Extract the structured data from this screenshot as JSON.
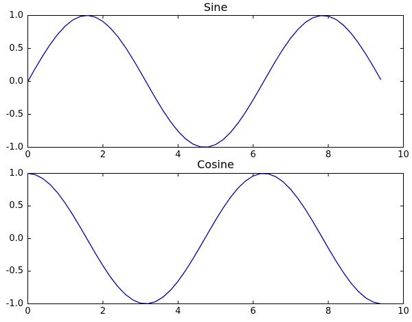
{
  "figure": {
    "background": "#ffffff"
  },
  "chart_data": [
    {
      "type": "line",
      "title": "Sine",
      "xlabel": "",
      "ylabel": "",
      "xlim": [
        0,
        10
      ],
      "ylim": [
        -1,
        1
      ],
      "xticks": [
        0,
        2,
        4,
        6,
        8,
        10
      ],
      "xtick_labels": [
        "0",
        "2",
        "4",
        "6",
        "8",
        "10"
      ],
      "yticks": [
        1.0,
        0.5,
        0.0,
        -0.5,
        -1.0
      ],
      "ytick_labels": [
        "1.0",
        "0.5",
        "0.0",
        "-0.5",
        "-1.0"
      ],
      "grid": false,
      "legend": "none",
      "line_color": "#0000a0",
      "spine_color": "#000000",
      "series": [
        {
          "name": "sine",
          "x": [
            0,
            0.2,
            0.4,
            0.6,
            0.8,
            1.0,
            1.2,
            1.4,
            1.6,
            1.8,
            2.0,
            2.2,
            2.4,
            2.6,
            2.8,
            3.0,
            3.2,
            3.4,
            3.6,
            3.8,
            4.0,
            4.2,
            4.4,
            4.6,
            4.8,
            5.0,
            5.2,
            5.4,
            5.6,
            5.8,
            6.0,
            6.2,
            6.4,
            6.6,
            6.8,
            7.0,
            7.2,
            7.4,
            7.6,
            7.8,
            8.0,
            8.2,
            8.4,
            8.6,
            8.8,
            9.0,
            9.2,
            9.4
          ],
          "y": [
            0.0,
            0.199,
            0.389,
            0.565,
            0.717,
            0.841,
            0.932,
            0.985,
            1.0,
            0.974,
            0.909,
            0.808,
            0.676,
            0.516,
            0.335,
            0.141,
            -0.058,
            -0.256,
            -0.443,
            -0.612,
            -0.757,
            -0.872,
            -0.952,
            -0.994,
            -0.996,
            -0.959,
            -0.884,
            -0.773,
            -0.631,
            -0.465,
            -0.279,
            -0.083,
            0.116,
            0.312,
            0.494,
            0.657,
            0.794,
            0.899,
            0.968,
            0.998,
            0.989,
            0.941,
            0.855,
            0.734,
            0.585,
            0.412,
            0.223,
            0.025
          ]
        }
      ]
    },
    {
      "type": "line",
      "title": "Cosine",
      "xlabel": "",
      "ylabel": "",
      "xlim": [
        0,
        10
      ],
      "ylim": [
        -1,
        1
      ],
      "xticks": [
        0,
        2,
        4,
        6,
        8,
        10
      ],
      "xtick_labels": [
        "0",
        "2",
        "4",
        "6",
        "8",
        "10"
      ],
      "yticks": [
        1.0,
        0.5,
        0.0,
        -0.5,
        -1.0
      ],
      "ytick_labels": [
        "1.0",
        "0.5",
        "0.0",
        "-0.5",
        "-1.0"
      ],
      "grid": false,
      "legend": "none",
      "line_color": "#0000a0",
      "spine_color": "#000000",
      "series": [
        {
          "name": "cosine",
          "x": [
            0,
            0.2,
            0.4,
            0.6,
            0.8,
            1.0,
            1.2,
            1.4,
            1.6,
            1.8,
            2.0,
            2.2,
            2.4,
            2.6,
            2.8,
            3.0,
            3.2,
            3.4,
            3.6,
            3.8,
            4.0,
            4.2,
            4.4,
            4.6,
            4.8,
            5.0,
            5.2,
            5.4,
            5.6,
            5.8,
            6.0,
            6.2,
            6.4,
            6.6,
            6.8,
            7.0,
            7.2,
            7.4,
            7.6,
            7.8,
            8.0,
            8.2,
            8.4,
            8.6,
            8.8,
            9.0,
            9.2,
            9.4
          ],
          "y": [
            1.0,
            0.98,
            0.921,
            0.825,
            0.697,
            0.54,
            0.362,
            0.17,
            -0.029,
            -0.227,
            -0.416,
            -0.589,
            -0.737,
            -0.857,
            -0.942,
            -0.99,
            -0.998,
            -0.967,
            -0.897,
            -0.791,
            -0.654,
            -0.49,
            -0.307,
            -0.112,
            0.087,
            0.284,
            0.469,
            0.635,
            0.776,
            0.886,
            0.96,
            0.997,
            0.993,
            0.95,
            0.869,
            0.754,
            0.608,
            0.439,
            0.251,
            0.054,
            -0.146,
            -0.339,
            -0.519,
            -0.679,
            -0.811,
            -0.911,
            -0.974,
            -1.0
          ]
        }
      ]
    }
  ]
}
